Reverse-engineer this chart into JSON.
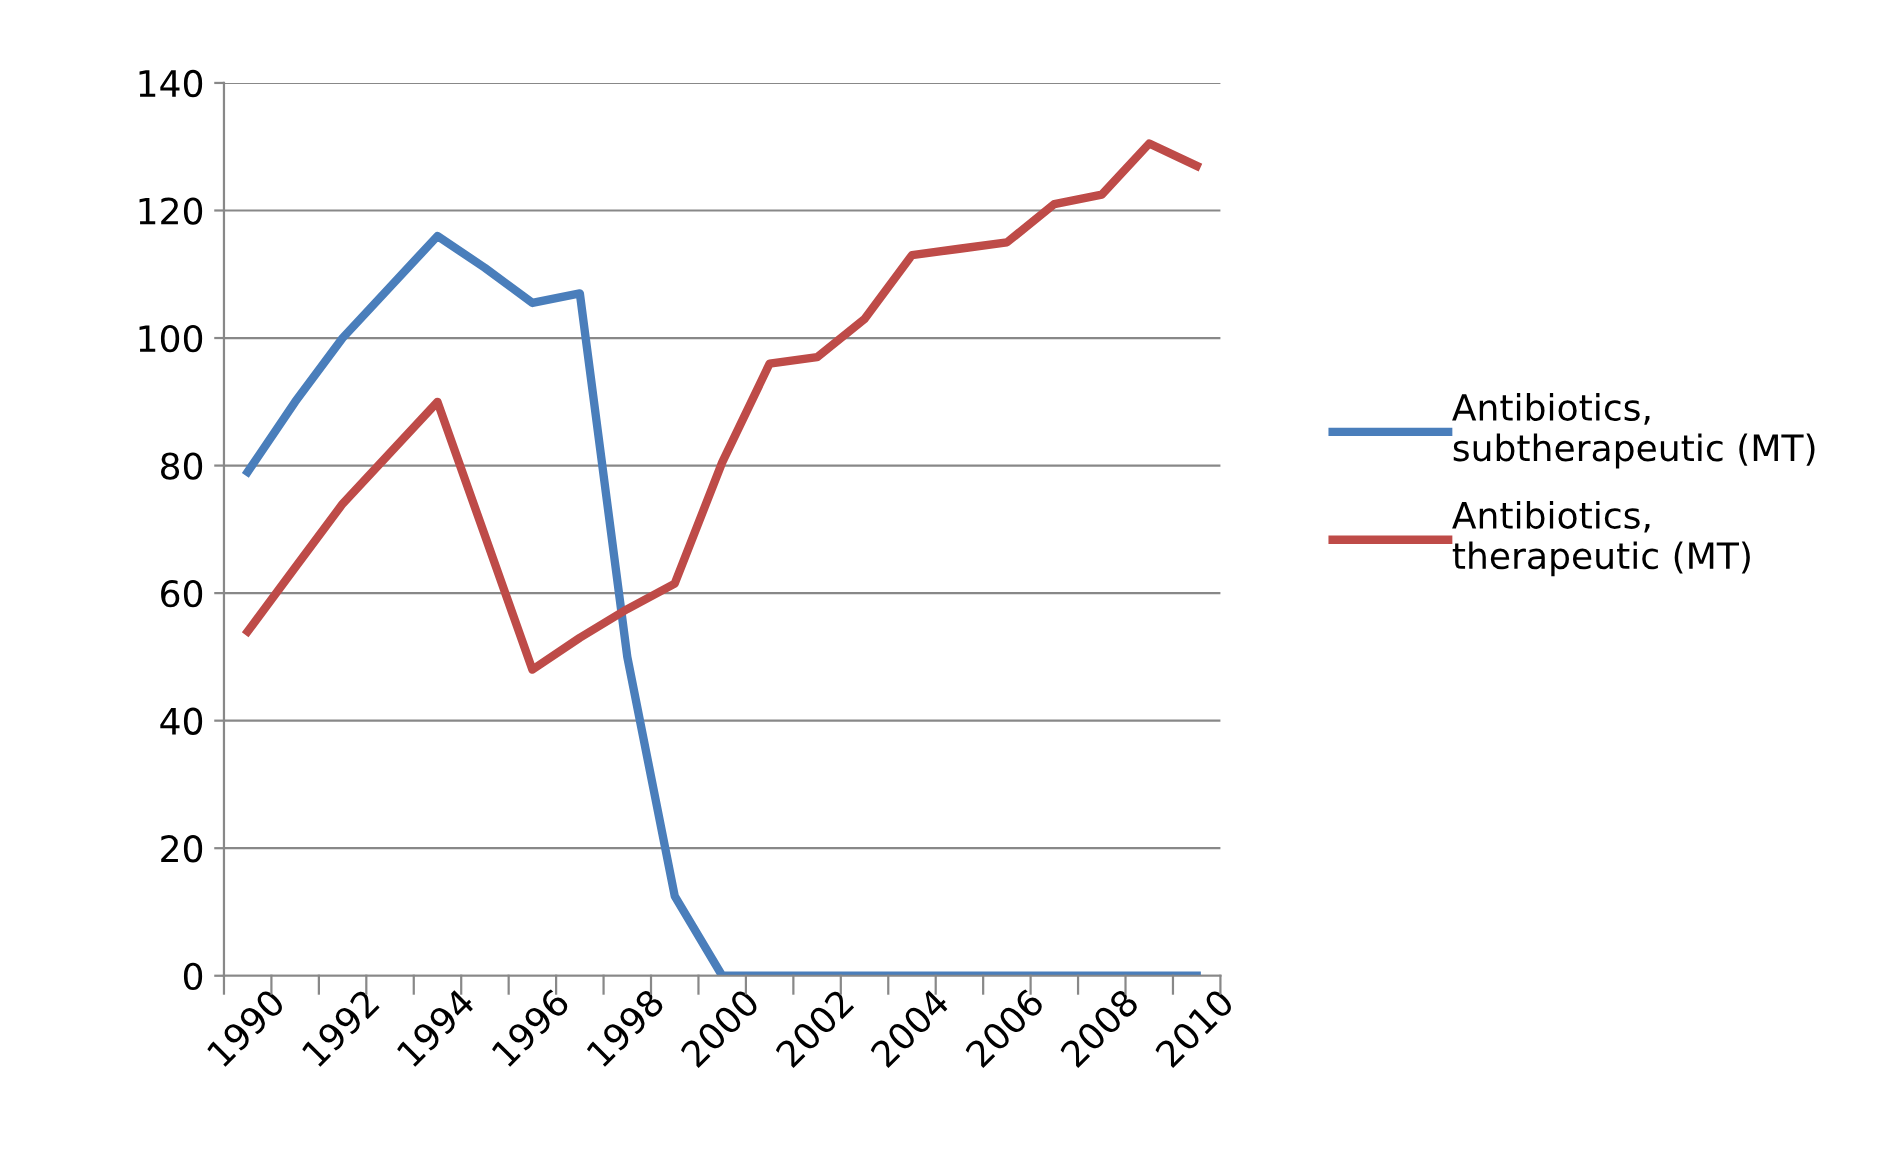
{
  "chart_data": {
    "type": "line",
    "categories": [
      "1990",
      null,
      "1992",
      null,
      "1994",
      null,
      "1996",
      null,
      "1998",
      null,
      "2000",
      null,
      "2002",
      null,
      "2004",
      null,
      "2006",
      null,
      "2008",
      null,
      "2010"
    ],
    "series": [
      {
        "name": "Antibiotics, subtherapeutic (MT)",
        "color": "#4a7ebb",
        "values": [
          79,
          90,
          100,
          108,
          116,
          111,
          105.5,
          107,
          50,
          12.5,
          0,
          0,
          0,
          0,
          0,
          0,
          0,
          0,
          0,
          0,
          0
        ]
      },
      {
        "name": "Antibiotics, therapeutic (MT)",
        "color": "#be4b48",
        "values": [
          54,
          64,
          74,
          82,
          90,
          69,
          48,
          53,
          57.5,
          61.5,
          80.5,
          96,
          97,
          103,
          113,
          114,
          115,
          121,
          122.5,
          130.5,
          127
        ]
      }
    ],
    "ylim": [
      0,
      140
    ],
    "yticks": [
      0,
      20,
      40,
      60,
      80,
      100,
      120,
      140
    ],
    "grid": "y",
    "legend": "right",
    "marker": "none",
    "line_style": "solid"
  }
}
